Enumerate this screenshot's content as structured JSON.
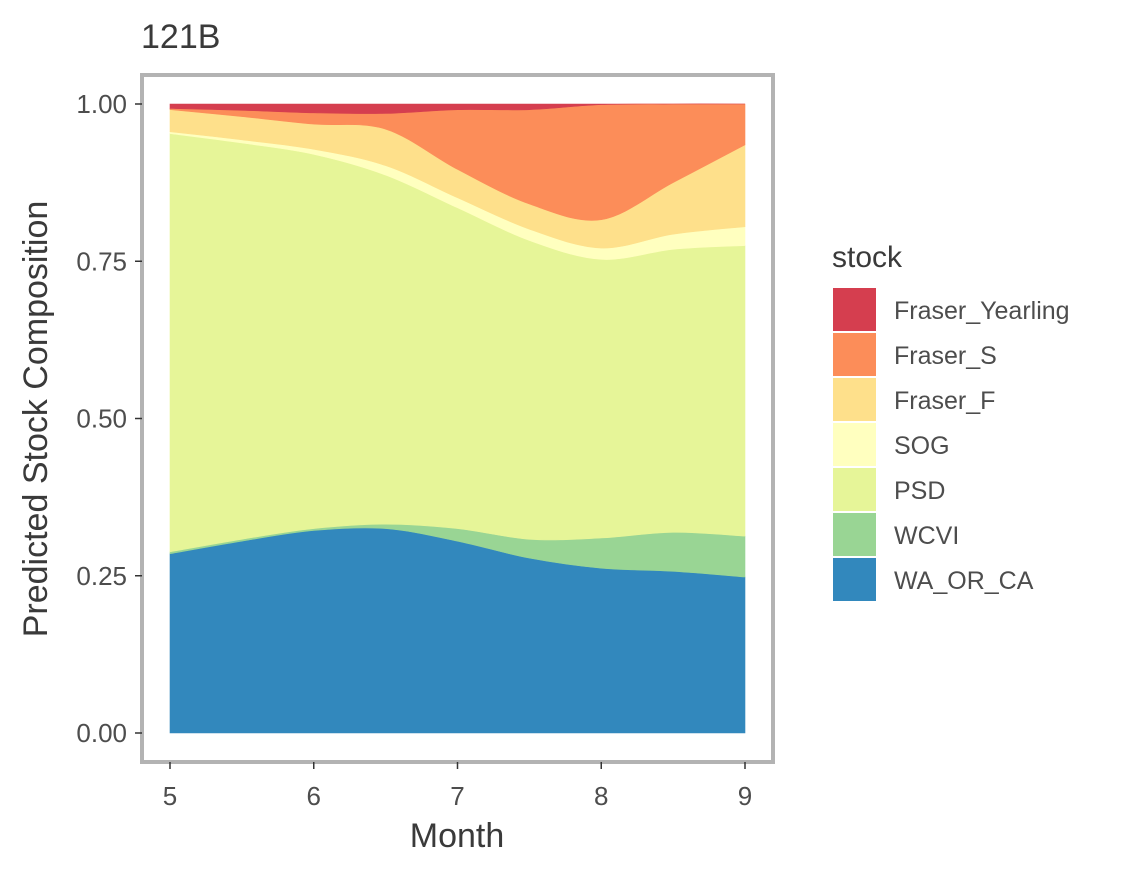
{
  "chart_data": {
    "type": "area",
    "stacked": true,
    "title": "121B",
    "xlabel": "Month",
    "ylabel": "Predicted Stock Composition",
    "xlim": [
      5,
      9
    ],
    "ylim": [
      0,
      1
    ],
    "xticks": [
      "5",
      "6",
      "7",
      "8",
      "9"
    ],
    "yticks": [
      "0.00",
      "0.25",
      "0.50",
      "0.75",
      "1.00"
    ],
    "grid": false,
    "legend_title": "stock",
    "legend_position": "right",
    "x": [
      5,
      5.5,
      6,
      6.5,
      7,
      7.5,
      8,
      8.5,
      9
    ],
    "series": [
      {
        "name": "WA_OR_CA",
        "color": "#3288bd",
        "values": [
          0.285,
          0.305,
          0.322,
          0.325,
          0.305,
          0.278,
          0.262,
          0.257,
          0.248
        ]
      },
      {
        "name": "WCVI",
        "color": "#99d594",
        "values": [
          0.003,
          0.003,
          0.003,
          0.007,
          0.02,
          0.03,
          0.048,
          0.062,
          0.065
        ]
      },
      {
        "name": "PSD",
        "color": "#e6f598",
        "values": [
          0.665,
          0.63,
          0.595,
          0.555,
          0.51,
          0.475,
          0.443,
          0.45,
          0.462
        ]
      },
      {
        "name": "SOG",
        "color": "#ffffbf",
        "values": [
          0.003,
          0.005,
          0.008,
          0.015,
          0.016,
          0.018,
          0.018,
          0.024,
          0.03
        ]
      },
      {
        "name": "Fraser_F",
        "color": "#fee08b",
        "values": [
          0.035,
          0.037,
          0.04,
          0.058,
          0.045,
          0.04,
          0.045,
          0.082,
          0.13
        ]
      },
      {
        "name": "Fraser_S",
        "color": "#fc8d59",
        "values": [
          0.002,
          0.01,
          0.018,
          0.025,
          0.095,
          0.15,
          0.183,
          0.125,
          0.065
        ]
      },
      {
        "name": "Fraser_Yearling",
        "color": "#d53e4f",
        "values": [
          0.007,
          0.01,
          0.014,
          0.015,
          0.009,
          0.009,
          0.001,
          0.0,
          0.0
        ]
      }
    ],
    "legend_order": [
      "Fraser_Yearling",
      "Fraser_S",
      "Fraser_F",
      "SOG",
      "PSD",
      "WCVI",
      "WA_OR_CA"
    ]
  }
}
